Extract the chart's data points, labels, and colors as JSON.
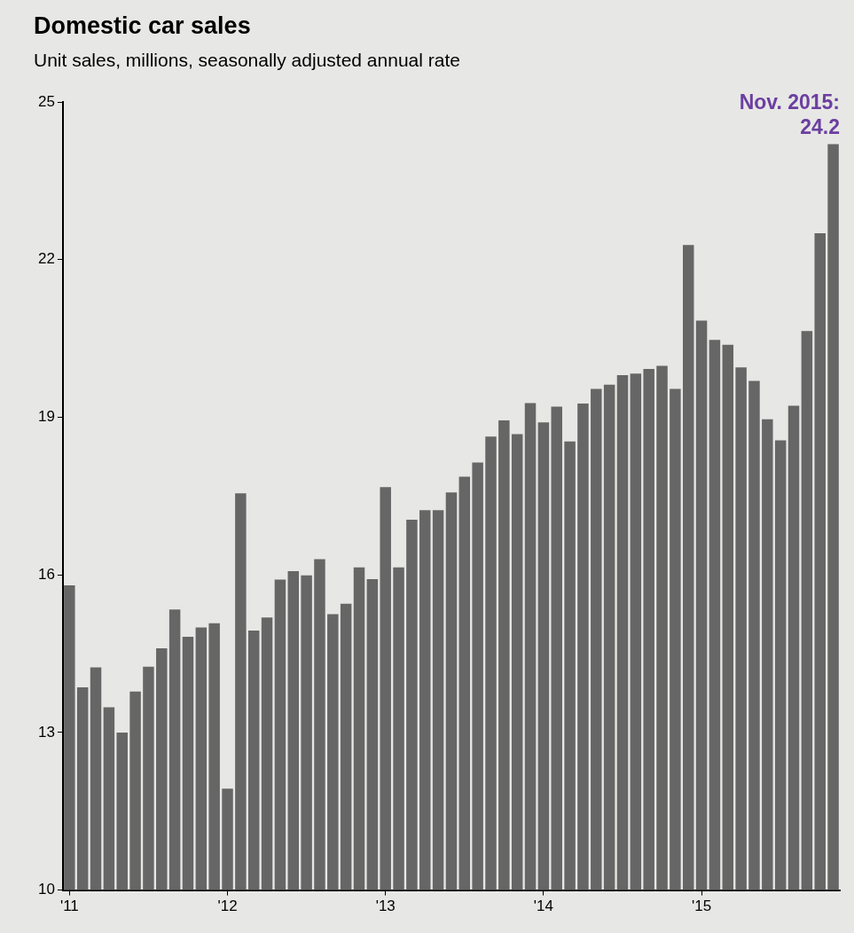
{
  "chart_data": {
    "type": "bar",
    "title": "Domestic car sales",
    "subtitle": "Unit sales, millions, seasonally adjusted annual rate",
    "categories": [
      "'11",
      null,
      null,
      null,
      null,
      null,
      null,
      null,
      null,
      null,
      null,
      null,
      "'12",
      null,
      null,
      null,
      null,
      null,
      null,
      null,
      null,
      null,
      null,
      null,
      "'13",
      null,
      null,
      null,
      null,
      null,
      null,
      null,
      null,
      null,
      null,
      null,
      "'14",
      null,
      null,
      null,
      null,
      null,
      null,
      null,
      null,
      null,
      null,
      null,
      "'15",
      null,
      null,
      null,
      null,
      null,
      null,
      null,
      null,
      null,
      null
    ],
    "values": [
      15.8,
      13.86,
      14.24,
      13.48,
      13.0,
      13.78,
      14.25,
      14.6,
      15.34,
      14.82,
      15.0,
      15.08,
      11.93,
      17.55,
      14.94,
      15.19,
      15.91,
      16.07,
      15.99,
      16.3,
      15.25,
      15.45,
      16.14,
      15.92,
      17.67,
      16.14,
      17.05,
      17.23,
      17.23,
      17.57,
      17.87,
      18.14,
      18.63,
      18.94,
      18.68,
      19.27,
      18.9,
      19.2,
      18.54,
      19.26,
      19.54,
      19.62,
      19.8,
      19.83,
      19.92,
      19.98,
      19.54,
      22.28,
      20.84,
      20.47,
      20.38,
      19.95,
      19.69,
      18.96,
      18.56,
      19.22,
      20.64,
      22.5,
      24.2
    ],
    "color": "#666666",
    "ylim": [
      10,
      25
    ],
    "yticks": [
      10,
      13,
      16,
      19,
      22,
      25
    ],
    "annotations": [
      "Nov. 2015: 24.2"
    ],
    "legend": false
  }
}
